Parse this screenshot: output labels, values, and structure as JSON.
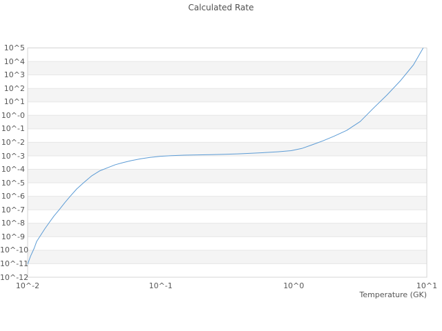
{
  "chart_data": {
    "type": "line",
    "title": "Calculated Rate",
    "xlabel": "Temperature (GK)",
    "ylabel": "",
    "x_scale": "log",
    "y_scale": "log",
    "xlim": [
      0.01,
      10
    ],
    "ylim": [
      1e-12,
      100000.0
    ],
    "grid": "horizontal-decade-bands",
    "legend": "none",
    "x_tick_labels": [
      "10^-2",
      "10^-1",
      "10^0",
      "10^1"
    ],
    "x_tick_values": [
      0.01,
      0.1,
      1,
      10
    ],
    "y_tick_labels": [
      "10^5",
      "10^4",
      "10^3",
      "10^2",
      "10^1",
      "10^-0",
      "10^-1",
      "10^-2",
      "10^-3",
      "10^-4",
      "10^-5",
      "10^-6",
      "10^-7",
      "10^-8",
      "10^-9",
      "10^-10",
      "10^-11",
      "10^-12"
    ],
    "y_tick_values": [
      100000.0,
      10000.0,
      1000.0,
      100.0,
      10.0,
      1.0,
      0.1,
      0.01,
      0.001,
      0.0001,
      1e-05,
      1e-06,
      1e-07,
      1e-08,
      1e-09,
      1e-10,
      1e-11,
      1e-12
    ],
    "style": {
      "line_color": "#5b9bd5",
      "band_fill": "#f4f4f4",
      "gridline_color": "#e6e6e6",
      "border_color": "#d4d4d4",
      "text_color": "#555555",
      "background": "#ffffff"
    },
    "series": [
      {
        "name": "calculated-rate",
        "color": "#5b9bd5",
        "x": [
          0.01,
          0.0105,
          0.0112,
          0.0117,
          0.0126,
          0.0135,
          0.0145,
          0.0158,
          0.0174,
          0.0191,
          0.0209,
          0.0234,
          0.0263,
          0.0302,
          0.0347,
          0.0398,
          0.0457,
          0.0525,
          0.0603,
          0.0708,
          0.0832,
          0.1,
          0.12,
          0.151,
          0.191,
          0.24,
          0.302,
          0.38,
          0.479,
          0.603,
          0.759,
          0.955,
          1.15,
          1.38,
          1.66,
          2.0,
          2.51,
          3.16,
          3.98,
          5.01,
          6.31,
          7.94,
          9.4
        ],
        "y": [
          9.1e-12,
          3.5e-11,
          1.4e-10,
          4.5e-10,
          1.4e-09,
          4e-09,
          1.1e-08,
          3.5e-08,
          1.1e-07,
          3.5e-07,
          1e-06,
          3.5e-06,
          1e-05,
          3.2e-05,
          7.6e-05,
          0.00013,
          0.00022,
          0.00032,
          0.00044,
          0.0006,
          0.00076,
          0.00093,
          0.00102,
          0.00112,
          0.00117,
          0.00123,
          0.00129,
          0.00141,
          0.00155,
          0.00174,
          0.002,
          0.0024,
          0.0035,
          0.0066,
          0.013,
          0.028,
          0.079,
          0.35,
          3.5,
          32.0,
          355.0,
          5600.0,
          100000.0
        ]
      }
    ]
  }
}
